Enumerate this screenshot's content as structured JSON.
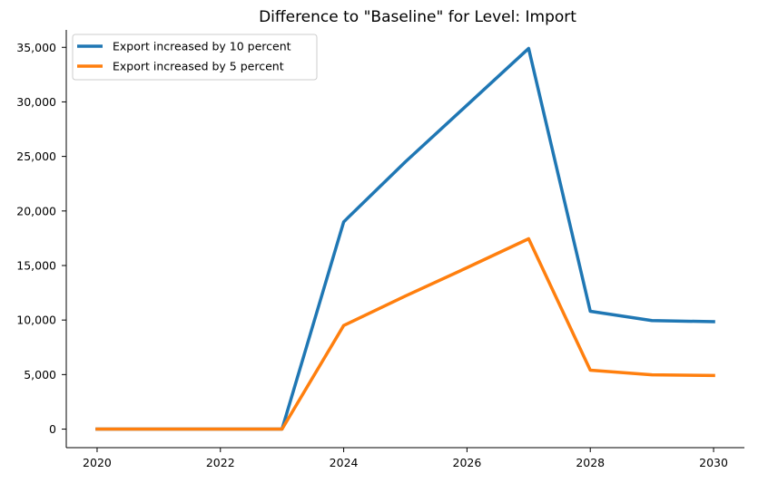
{
  "chart_data": {
    "type": "line",
    "title": "Difference to \"Baseline\" for Level: Import",
    "xlabel": "",
    "ylabel": "",
    "x": [
      2020,
      2021,
      2022,
      2023,
      2024,
      2025,
      2026,
      2027,
      2028,
      2029,
      2030
    ],
    "xlim": [
      2019.5,
      2030.5
    ],
    "ylim": [
      -1700,
      36600
    ],
    "x_ticks": [
      2020,
      2022,
      2024,
      2026,
      2028,
      2030
    ],
    "y_ticks": [
      0,
      5000,
      10000,
      15000,
      20000,
      25000,
      30000,
      35000
    ],
    "x_tick_labels": [
      "2020",
      "2022",
      "2024",
      "2026",
      "2028",
      "2030"
    ],
    "y_tick_labels": [
      "0",
      "5,000",
      "10,000",
      "15,000",
      "20,000",
      "25,000",
      "30,000",
      "35,000"
    ],
    "grid": false,
    "legend_position": "top-left",
    "series": [
      {
        "name": "Export increased by 10 percent",
        "color": "#1f77b4",
        "values": [
          0,
          0,
          0,
          0,
          19000,
          24500,
          29700,
          34900,
          10800,
          9950,
          9850
        ]
      },
      {
        "name": "Export increased by 5 percent",
        "color": "#ff7f0e",
        "values": [
          0,
          0,
          0,
          0,
          9500,
          12200,
          14800,
          17450,
          5400,
          4980,
          4920
        ]
      }
    ]
  }
}
